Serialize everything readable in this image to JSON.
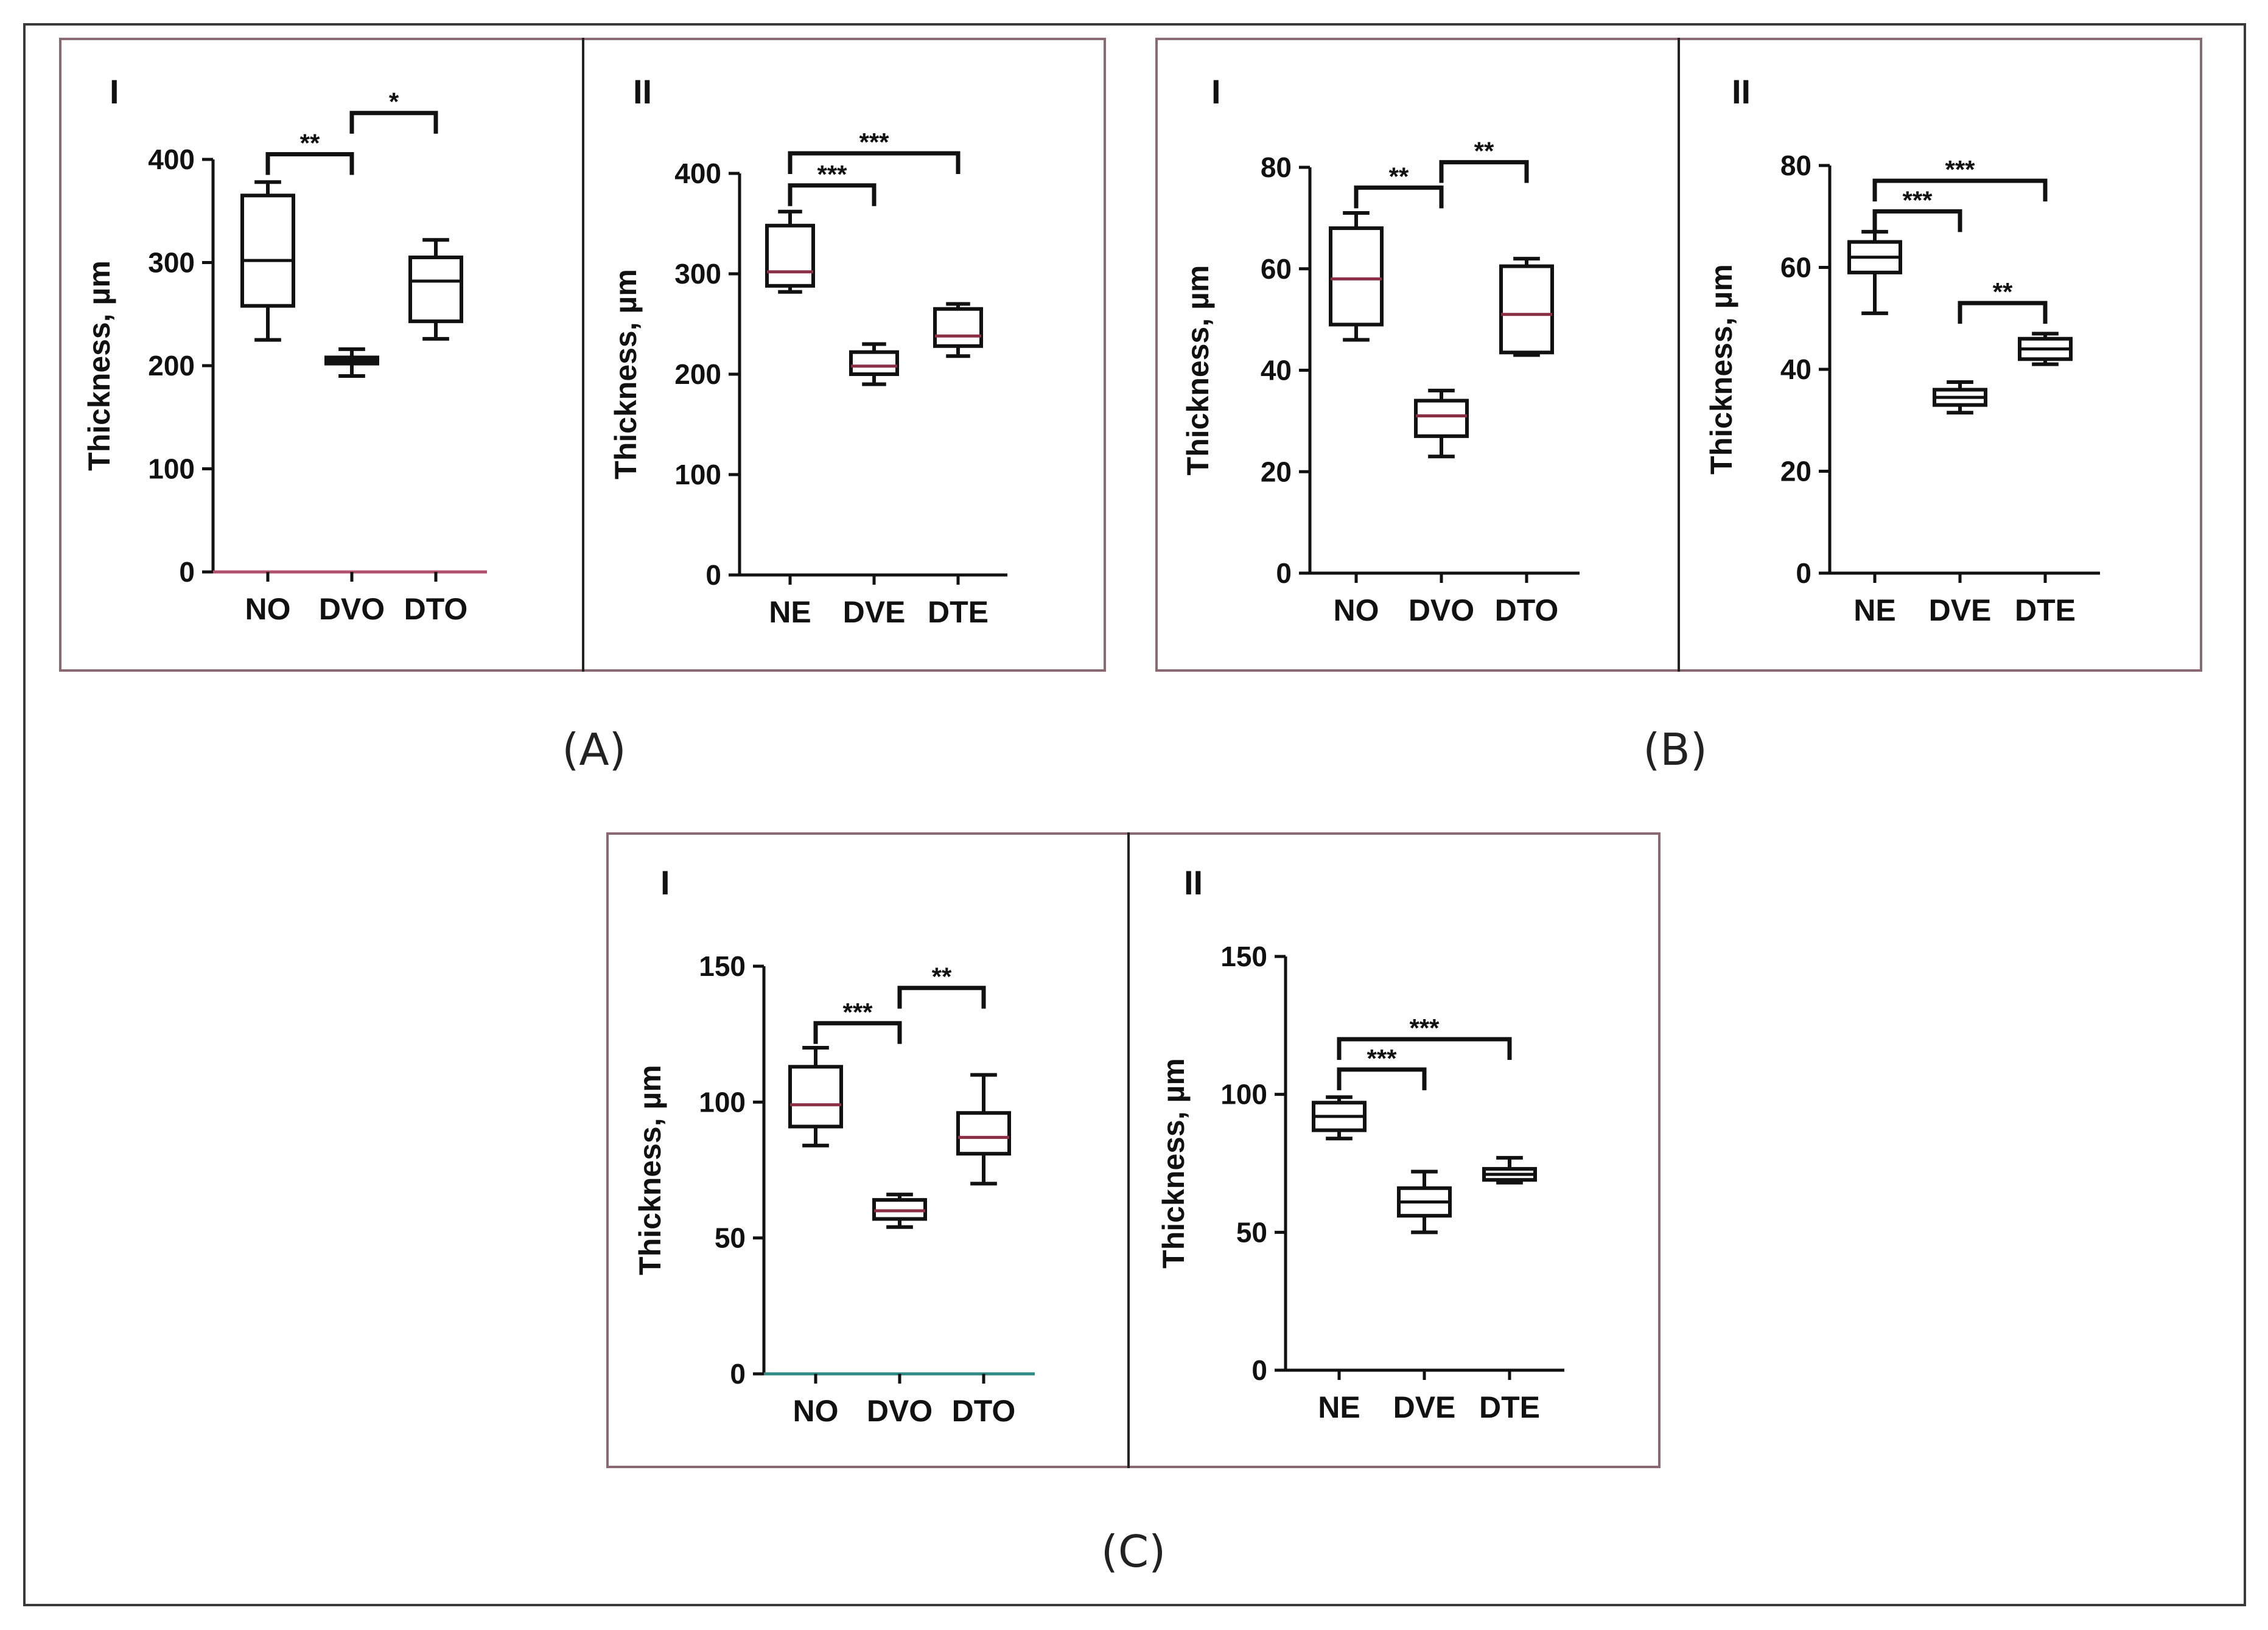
{
  "figure": {
    "colors": {
      "ink": "#111111",
      "frame": "#8a6a72",
      "axis_pink": "#b0506a",
      "axis_teal": "#2f8a86",
      "median_pink": "#8a2f45"
    },
    "groups": [
      {
        "label": "(A)"
      },
      {
        "label": "(B)"
      },
      {
        "label": "(C)"
      }
    ]
  },
  "chart_data": [
    {
      "panel": "A-I",
      "type": "box",
      "panel_label": "I",
      "ylabel": "Thickness, µm",
      "ylim": [
        0,
        400
      ],
      "yticks": [
        "0",
        "100",
        "200",
        "300",
        "400"
      ],
      "categories": [
        "NO",
        "DVO",
        "DTO"
      ],
      "boxes": [
        {
          "min": 225,
          "q1": 258,
          "median": 302,
          "q3": 365,
          "max": 378
        },
        {
          "min": 190,
          "q1": 202,
          "median": 205,
          "q3": 208,
          "max": 216
        },
        {
          "min": 226,
          "q1": 243,
          "median": 282,
          "q3": 305,
          "max": 322
        }
      ],
      "brackets": [
        {
          "from": 0,
          "to": 1,
          "y": 405,
          "label": "**"
        },
        {
          "from": 1,
          "to": 2,
          "y": 445,
          "label": "*"
        }
      ]
    },
    {
      "panel": "A-II",
      "type": "box",
      "panel_label": "II",
      "ylabel": "Thickness, µm",
      "ylim": [
        0,
        400
      ],
      "yticks": [
        "0",
        "100",
        "200",
        "300",
        "400"
      ],
      "categories": [
        "NE",
        "DVE",
        "DTE"
      ],
      "boxes": [
        {
          "min": 282,
          "q1": 288,
          "median": 302,
          "q3": 348,
          "max": 362
        },
        {
          "min": 190,
          "q1": 200,
          "median": 208,
          "q3": 222,
          "max": 230
        },
        {
          "min": 218,
          "q1": 228,
          "median": 238,
          "q3": 265,
          "max": 270
        }
      ],
      "brackets": [
        {
          "from": 0,
          "to": 1,
          "y": 388,
          "label": "***"
        },
        {
          "from": 0,
          "to": 2,
          "y": 420,
          "label": "***"
        }
      ]
    },
    {
      "panel": "B-I",
      "type": "box",
      "panel_label": "I",
      "ylabel": "Thickness, µm",
      "ylim": [
        0,
        80
      ],
      "yticks": [
        "0",
        "20",
        "40",
        "60",
        "80"
      ],
      "categories": [
        "NO",
        "DVO",
        "DTO"
      ],
      "boxes": [
        {
          "min": 46,
          "q1": 49,
          "median": 58,
          "q3": 68,
          "max": 71
        },
        {
          "min": 23,
          "q1": 27,
          "median": 31,
          "q3": 34,
          "max": 36
        },
        {
          "min": 43,
          "q1": 43.5,
          "median": 51,
          "q3": 60.5,
          "max": 62
        }
      ],
      "brackets": [
        {
          "from": 0,
          "to": 1,
          "y": 76,
          "label": "**"
        },
        {
          "from": 1,
          "to": 2,
          "y": 81,
          "label": "**"
        }
      ]
    },
    {
      "panel": "B-II",
      "type": "box",
      "panel_label": "II",
      "ylabel": "Thickness, µm",
      "ylim": [
        0,
        80
      ],
      "yticks": [
        "0",
        "20",
        "40",
        "60",
        "80"
      ],
      "categories": [
        "NE",
        "DVE",
        "DTE"
      ],
      "boxes": [
        {
          "min": 51,
          "q1": 59,
          "median": 62,
          "q3": 65,
          "max": 67
        },
        {
          "min": 31.5,
          "q1": 33,
          "median": 34.5,
          "q3": 36,
          "max": 37.5
        },
        {
          "min": 41,
          "q1": 42,
          "median": 44,
          "q3": 46,
          "max": 47
        }
      ],
      "brackets": [
        {
          "from": 0,
          "to": 1,
          "y": 71,
          "label": "***"
        },
        {
          "from": 0,
          "to": 2,
          "y": 77,
          "label": "***"
        },
        {
          "from": 1,
          "to": 2,
          "y": 53,
          "label": "**"
        }
      ]
    },
    {
      "panel": "C-I",
      "type": "box",
      "panel_label": "I",
      "ylabel": "Thickness, µm",
      "ylim": [
        0,
        150
      ],
      "yticks": [
        "0",
        "50",
        "100",
        "150"
      ],
      "categories": [
        "NO",
        "DVO",
        "DTO"
      ],
      "boxes": [
        {
          "min": 84,
          "q1": 91,
          "median": 99,
          "q3": 113,
          "max": 120
        },
        {
          "min": 54,
          "q1": 57,
          "median": 60,
          "q3": 64,
          "max": 66
        },
        {
          "min": 70,
          "q1": 81,
          "median": 87,
          "q3": 96,
          "max": 110
        }
      ],
      "brackets": [
        {
          "from": 0,
          "to": 1,
          "y": 129,
          "label": "***"
        },
        {
          "from": 1,
          "to": 2,
          "y": 142,
          "label": "**"
        }
      ]
    },
    {
      "panel": "C-II",
      "type": "box",
      "panel_label": "II",
      "ylabel": "Thickness, µm",
      "ylim": [
        0,
        150
      ],
      "yticks": [
        "0",
        "50",
        "100",
        "150"
      ],
      "categories": [
        "NE",
        "DVE",
        "DTE"
      ],
      "boxes": [
        {
          "min": 84,
          "q1": 87,
          "median": 92,
          "q3": 97,
          "max": 99
        },
        {
          "min": 50,
          "q1": 56,
          "median": 61,
          "q3": 66,
          "max": 72
        },
        {
          "min": 68,
          "q1": 69,
          "median": 71,
          "q3": 73,
          "max": 77
        }
      ],
      "brackets": [
        {
          "from": 0,
          "to": 1,
          "y": 109,
          "label": "***"
        },
        {
          "from": 0,
          "to": 2,
          "y": 120,
          "label": "***"
        }
      ]
    }
  ]
}
